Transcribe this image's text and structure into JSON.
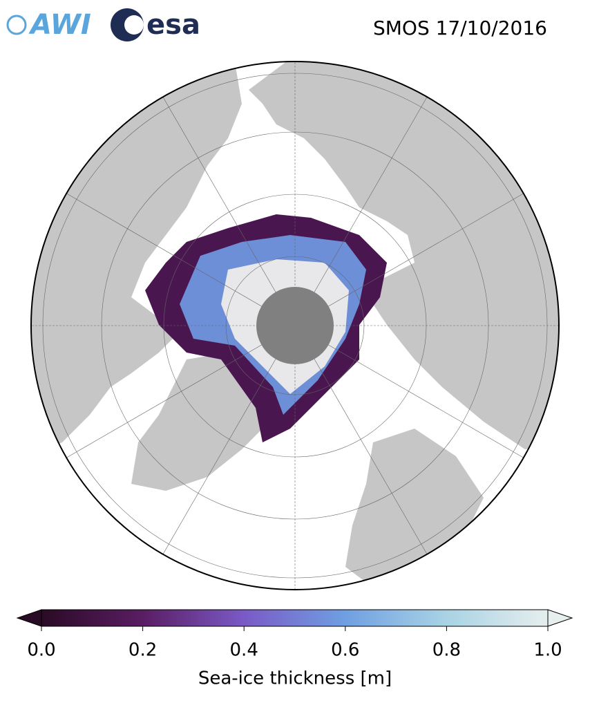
{
  "header": {
    "logos": [
      "AWI",
      "esa"
    ],
    "title": "SMOS 17/10/2016"
  },
  "colorbar": {
    "label": "Sea-ice thickness [m]",
    "range": [
      0,
      1
    ],
    "ticks": [
      {
        "value": 0,
        "label": "0.0"
      },
      {
        "value": 0.2,
        "label": "0.2"
      },
      {
        "value": 0.4,
        "label": "0.4"
      },
      {
        "value": 0.6,
        "label": "0.6"
      },
      {
        "value": 0.8,
        "label": "0.8"
      },
      {
        "value": 1,
        "label": "1.0"
      }
    ],
    "colors": [
      "#2a0b25",
      "#5a1d63",
      "#7a5ac6",
      "#6f9fe2",
      "#a9d3e4",
      "#e6eeee"
    ]
  }
}
